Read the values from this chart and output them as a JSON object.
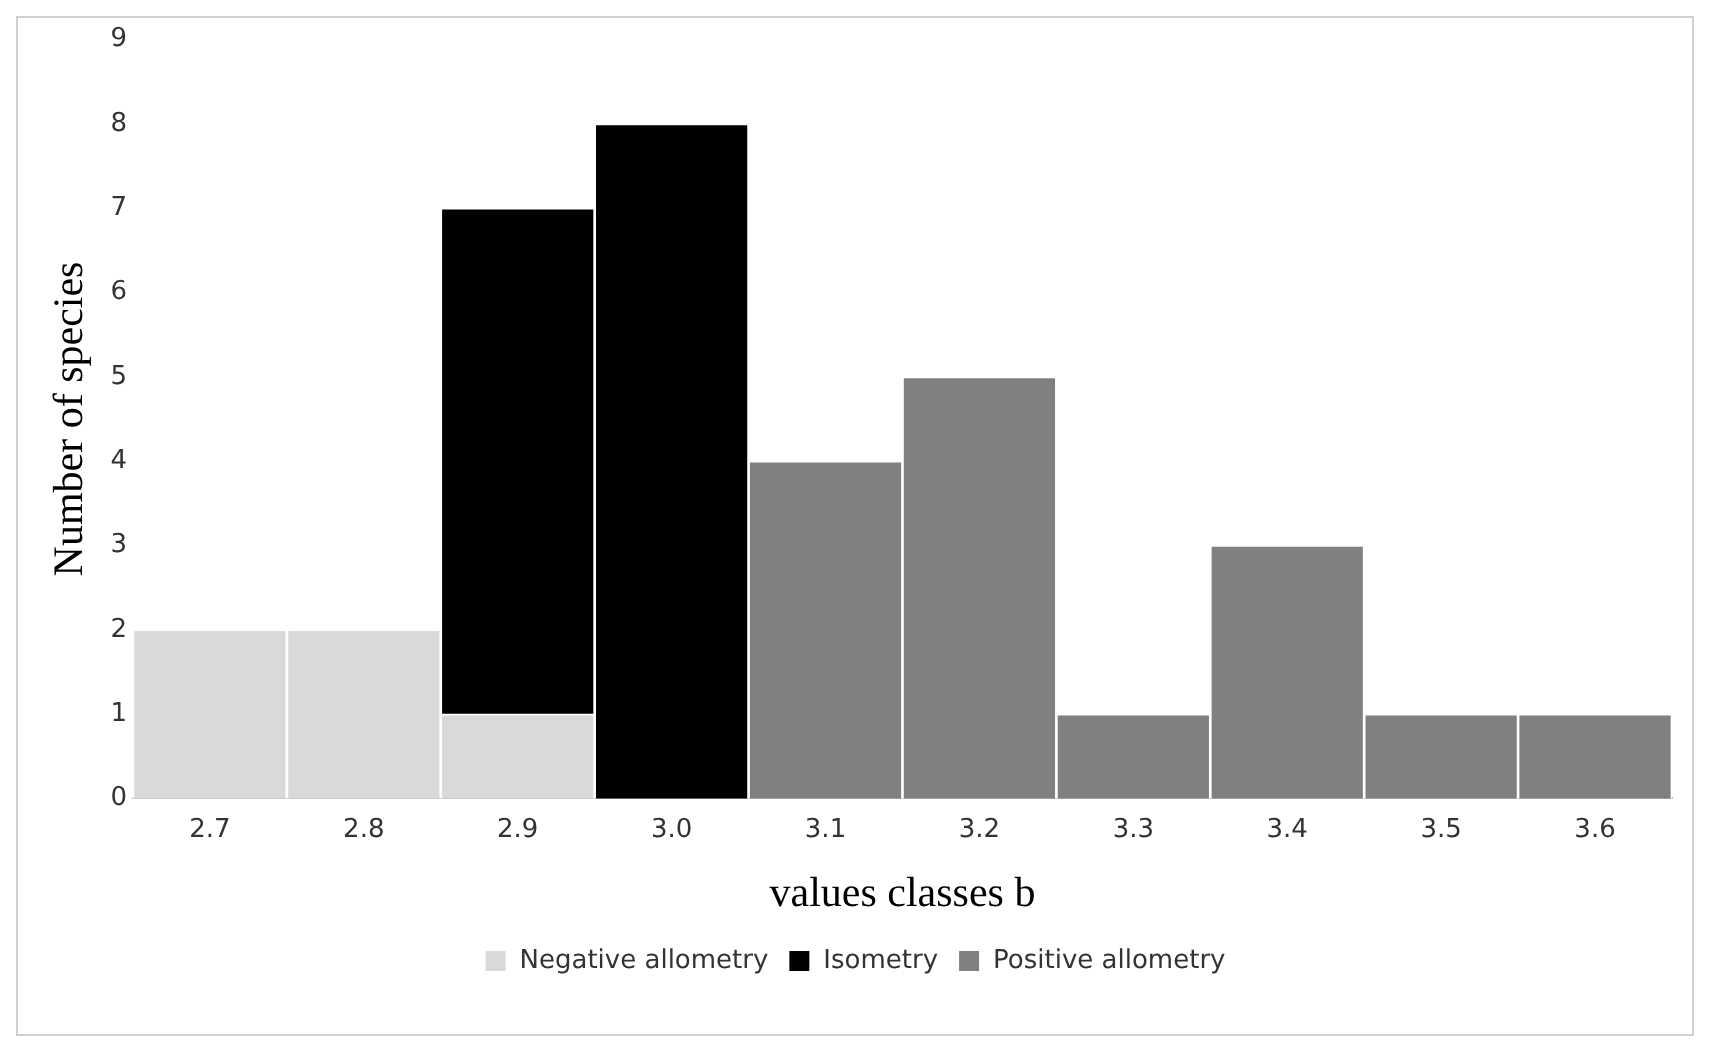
{
  "chart_data": {
    "type": "bar",
    "stacked": true,
    "xlabel": "values classes b",
    "ylabel": "Number of species",
    "categories": [
      "2.7",
      "2.8",
      "2.9",
      "3.0",
      "3.1",
      "3.2",
      "3.3",
      "3.4",
      "3.5",
      "3.6"
    ],
    "series": [
      {
        "name": "Negative allometry",
        "color": "#d9d9d9",
        "values": [
          2,
          2,
          1,
          null,
          null,
          null,
          null,
          null,
          null,
          null
        ]
      },
      {
        "name": "Isometry",
        "color": "#000000",
        "values": [
          null,
          null,
          6,
          8,
          null,
          null,
          null,
          null,
          null,
          null
        ]
      },
      {
        "name": "Positive allometry",
        "color": "#808080",
        "values": [
          null,
          null,
          null,
          null,
          4,
          5,
          1,
          3,
          1,
          1
        ]
      }
    ],
    "ylim": [
      0,
      9
    ],
    "yticks": [
      0,
      1,
      2,
      3,
      4,
      5,
      6,
      7,
      8,
      9
    ],
    "grid": false,
    "legend": "bottom"
  }
}
